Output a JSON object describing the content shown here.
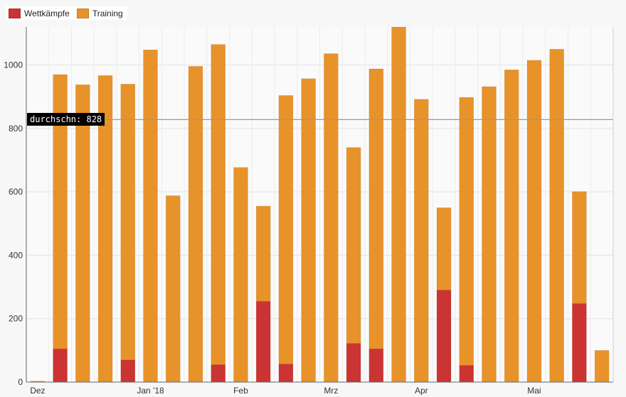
{
  "chart_data": {
    "type": "bar",
    "stacked": true,
    "title": "",
    "xlabel": "",
    "ylabel": "",
    "ylim": [
      0,
      1120
    ],
    "yticks": [
      0,
      200,
      400,
      600,
      800,
      1000
    ],
    "x_month_labels": [
      {
        "label": "Dez",
        "index": 0
      },
      {
        "label": "Jan '18",
        "index": 5
      },
      {
        "label": "Feb",
        "index": 9
      },
      {
        "label": "Mrz",
        "index": 13
      },
      {
        "label": "Apr",
        "index": 17
      },
      {
        "label": "Mai",
        "index": 22
      }
    ],
    "series": [
      {
        "name": "Wettkämpfe",
        "color": "#cc3333",
        "values": [
          0,
          105,
          0,
          0,
          70,
          0,
          0,
          0,
          55,
          0,
          255,
          57,
          0,
          0,
          122,
          105,
          0,
          0,
          290,
          53,
          0,
          0,
          0,
          0,
          248,
          0
        ]
      },
      {
        "name": "Training",
        "color": "#e8922a",
        "values": [
          3,
          865,
          938,
          967,
          870,
          1048,
          588,
          996,
          1010,
          677,
          300,
          847,
          957,
          1036,
          618,
          883,
          1120,
          892,
          260,
          845,
          932,
          985,
          1015,
          1050,
          353,
          100
        ]
      }
    ],
    "average": {
      "label": "durchschn: 828",
      "value": 828
    }
  },
  "legend": {
    "wettkaempfe_label": "Wettkämpfe",
    "training_label": "Training",
    "wettkaempfe_color": "#cc3333",
    "training_color": "#e8922a"
  }
}
